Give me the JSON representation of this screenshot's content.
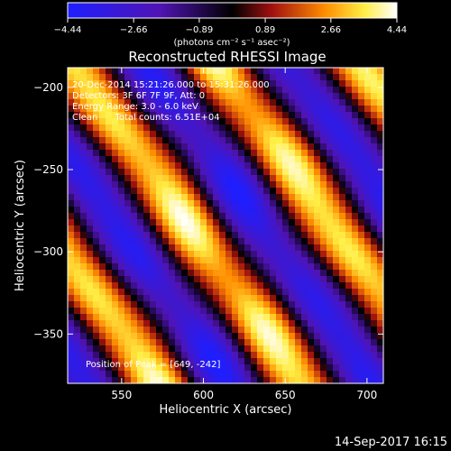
{
  "chart_data": {
    "type": "heatmap",
    "title": "Reconstructed RHESSI Image",
    "xlabel": "Heliocentric X (arcsec)",
    "ylabel": "Heliocentric Y (arcsec)",
    "xlim": [
      517,
      710
    ],
    "ylim": [
      -380,
      -188
    ],
    "xticks": [
      550,
      600,
      650,
      700
    ],
    "xtick_labels": [
      "550",
      "600",
      "650",
      "700"
    ],
    "yticks": [
      -200,
      -250,
      -300,
      -350
    ],
    "ytick_labels": [
      "−200",
      "−250",
      "−300",
      "−350"
    ],
    "grid": false,
    "colorscale": {
      "min": -4.44,
      "max": 4.44,
      "ticks": [
        -4.44,
        -2.66,
        -0.89,
        0.89,
        2.66,
        4.44
      ],
      "tick_labels": [
        "−4.44",
        "−2.66",
        "−0.89",
        "0.89",
        "2.66",
        "4.44"
      ],
      "unit_label": "(photons cm⁻² s⁻¹ asec⁻²)",
      "colors": [
        "#1e1eff",
        "#5014b4",
        "#000000",
        "#a01010",
        "#ff8c00",
        "#ffee44",
        "#ffffff"
      ]
    },
    "annotations": [
      "20-Dec-2014 15:21:26.000 to 15:31:26.000",
      "Detectors: 3F 6F 7F 9F, Att: 0",
      "Energy Range: 3.0 - 6.0 keV",
      "Clean      Total counts: 6.51E+04",
      "Position of Peak = [649, -242]"
    ],
    "peak_position": [
      649,
      -242
    ],
    "peak_value": 4.44
  },
  "footer": {
    "timestamp": "14-Sep-2017 16:15"
  }
}
